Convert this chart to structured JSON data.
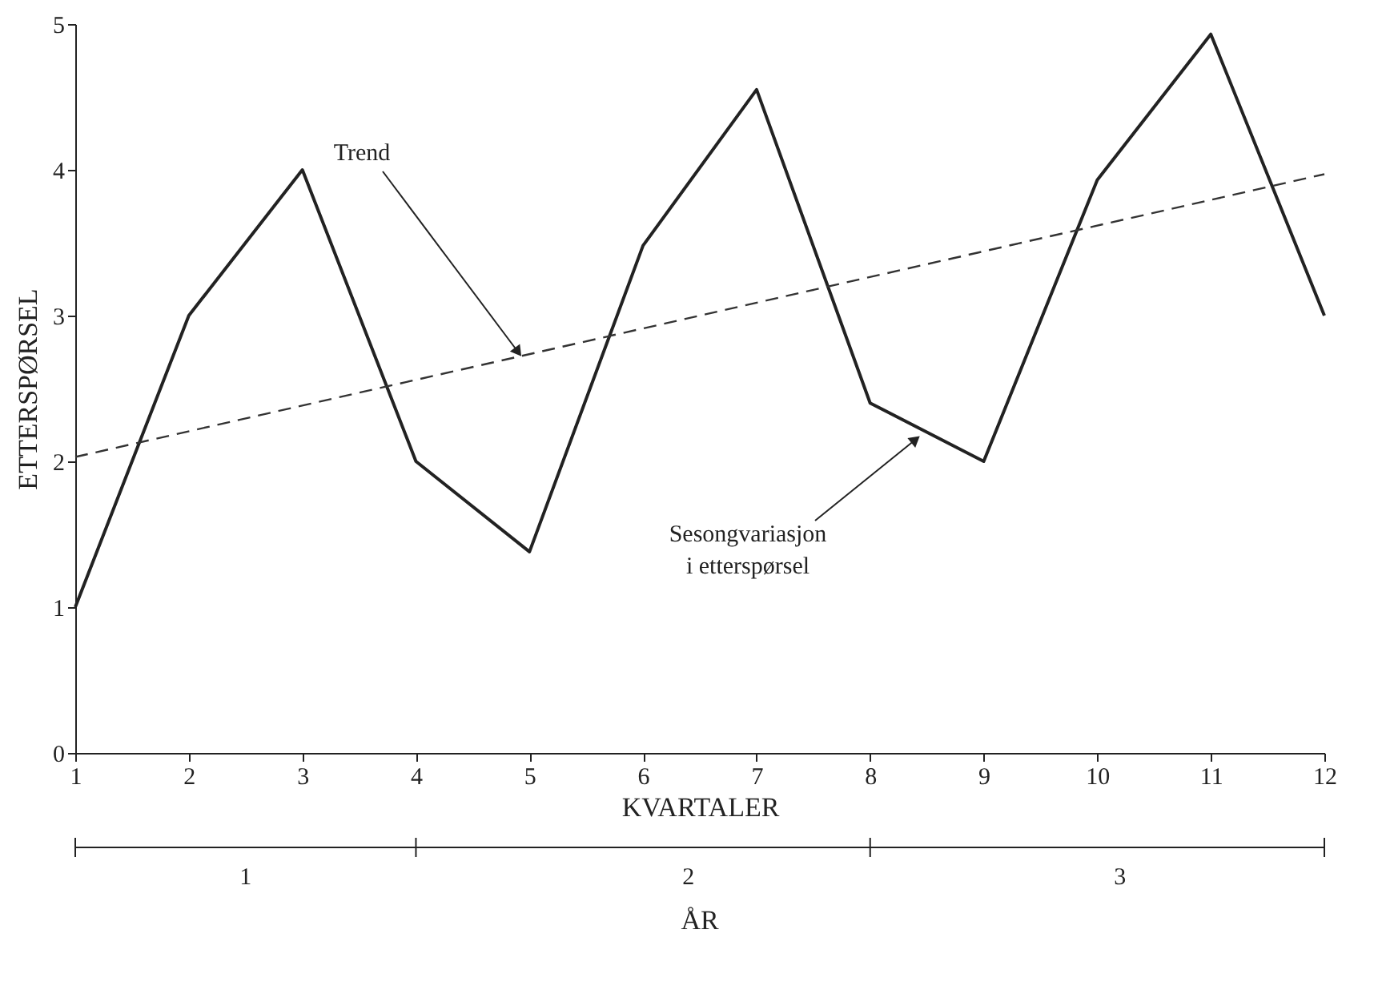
{
  "chart_data": {
    "type": "line",
    "xlabel": "KVARTALER",
    "ylabel": "ETTERSPØRSEL",
    "x": [
      1,
      2,
      3,
      4,
      5,
      6,
      7,
      8,
      9,
      10,
      11,
      12
    ],
    "series": [
      {
        "color": "#222222",
        "values": [
          1,
          3,
          4,
          2,
          1.38,
          3.48,
          4.55,
          2.4,
          2.0,
          3.93,
          4.93,
          3.0
        ]
      },
      {
        "color": "#333333",
        "x": [
          1,
          12
        ],
        "values": [
          2.03,
          3.97
        ],
        "line_style": "dashed"
      }
    ],
    "xlim": [
      1,
      12
    ],
    "ylim": [
      0,
      5
    ],
    "xticks": [
      1,
      2,
      3,
      4,
      5,
      6,
      7,
      8,
      9,
      10,
      11,
      12
    ],
    "yticks": [
      0,
      1,
      2,
      3,
      4,
      5
    ],
    "annotations": [
      {
        "text": "Trend",
        "x": 4.9,
        "y": 2.75
      },
      {
        "text": "Sesongvariasjon\ni etterspørsel",
        "x": 8.4,
        "y": 2.15
      },
      "1",
      "2",
      "3",
      "ÅR"
    ],
    "grid": false
  }
}
